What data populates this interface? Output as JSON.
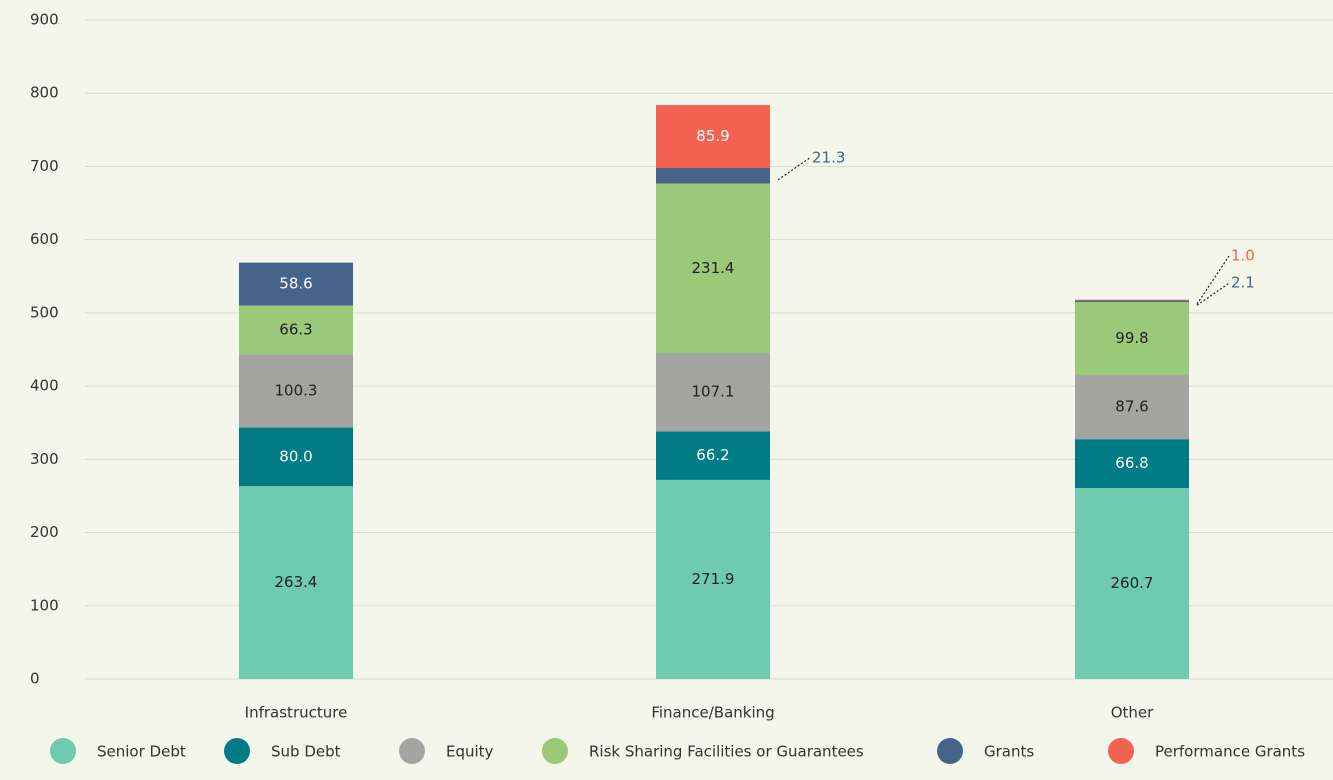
{
  "chart_data": {
    "type": "stacked_bar",
    "categories": [
      "Infrastructure",
      "Finance/Banking",
      "Other"
    ],
    "series": [
      {
        "name": "Senior Debt",
        "color": "#6fcbb0",
        "values": [
          263.4,
          271.9,
          260.7
        ],
        "value_labels": [
          "263.4",
          "271.9",
          "260.7"
        ]
      },
      {
        "name": "Sub Debt",
        "color": "#007c87",
        "values": [
          80,
          66.2,
          66.8
        ],
        "value_labels": [
          "80.0",
          "66.2",
          "66.8"
        ]
      },
      {
        "name": "Equity",
        "color": "#a4a4a1",
        "values": [
          100.3,
          107.1,
          87.6
        ],
        "value_labels": [
          "100.3",
          "107.1",
          "87.6"
        ]
      },
      {
        "name": "Risk Sharing Facilities or Guarantees",
        "color": "#9bc97a",
        "values": [
          66.3,
          231.4,
          99.8
        ],
        "value_labels": [
          "66.3",
          "231.4",
          "99.8"
        ]
      },
      {
        "name": "Grants",
        "color": "#46648a",
        "values": [
          58.6,
          21.3,
          2.1
        ],
        "value_labels": [
          "58.6",
          "21.3",
          "2.1"
        ]
      },
      {
        "name": "Performance Grants",
        "color": "#f26352",
        "values": [
          null,
          85.9,
          1
        ],
        "value_labels": [
          null,
          "85.9",
          "1.0"
        ]
      }
    ],
    "ylim": [
      0,
      900
    ],
    "yticks": [
      0,
      100,
      200,
      300,
      400,
      500,
      600,
      700,
      800,
      900
    ],
    "grid": true,
    "legend": "bottom"
  }
}
